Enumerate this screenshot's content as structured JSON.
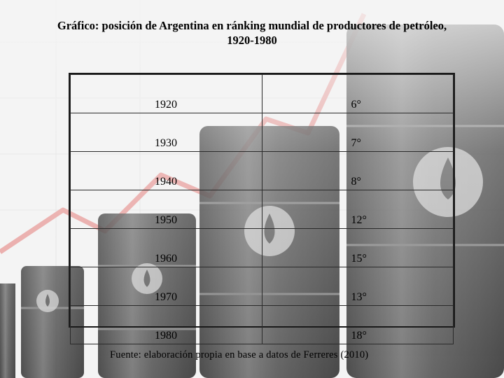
{
  "title_line1": "Gráfico: posición de Argentina en ránking mundial de productores de petróleo,",
  "title_line2": "1920-1980",
  "chart_data": {
    "type": "table",
    "title": "Gráfico: posición de Argentina en ránking mundial de productores de petróleo, 1920-1980",
    "rows": [
      {
        "year": "1920",
        "rank": "6°"
      },
      {
        "year": "1930",
        "rank": "7°"
      },
      {
        "year": "1940",
        "rank": "8°"
      },
      {
        "year": "1950",
        "rank": "12°"
      },
      {
        "year": "1960",
        "rank": "15°"
      },
      {
        "year": "1970",
        "rank": "13°"
      },
      {
        "year": "1980",
        "rank": "18°"
      }
    ]
  },
  "source": "Fuente: elaboración propia en base a datos de Ferreres (2010)",
  "colors": {
    "trend_arrow": "#e89a98",
    "barrel": "#2b2b2b",
    "background": "#f4f4f4"
  }
}
